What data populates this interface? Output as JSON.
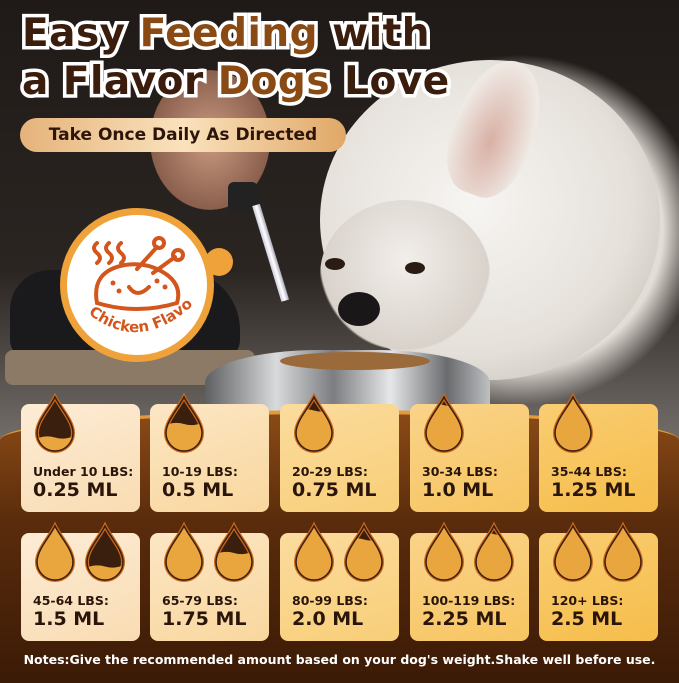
{
  "headline": {
    "line1": [
      "Easy ",
      "Feeding",
      " with"
    ],
    "line2": [
      "a Flavor ",
      "Dogs",
      " Love"
    ]
  },
  "subheadline": "Take Once Daily As Directed",
  "badge": {
    "label": "Chicken Flavor",
    "icon": "roast-chicken-icon"
  },
  "colors": {
    "dark_brown": "#3a1d0c",
    "accent_brown": "#8a4a14",
    "orange": "#f0a23a",
    "drop_fill": "#eaa63e",
    "drop_empty": "#3a1e0e"
  },
  "dosage": [
    {
      "weight": "Under 10 LBS:",
      "dose": "0.25 ML",
      "drops": [
        0.25
      ]
    },
    {
      "weight": "10-19 LBS:",
      "dose": "0.5 ML",
      "drops": [
        0.5
      ]
    },
    {
      "weight": "20-29 LBS:",
      "dose": "0.75 ML",
      "drops": [
        0.75
      ]
    },
    {
      "weight": "30-34 LBS:",
      "dose": "1.0 ML",
      "drops": [
        0.85
      ]
    },
    {
      "weight": "35-44 LBS:",
      "dose": "1.25 ML",
      "drops": [
        1
      ]
    },
    {
      "weight": "45-64 LBS:",
      "dose": "1.5 ML",
      "drops": [
        1,
        0.25
      ]
    },
    {
      "weight": "65-79 LBS:",
      "dose": "1.75 ML",
      "drops": [
        1,
        0.5
      ]
    },
    {
      "weight": "80-99 LBS:",
      "dose": "2.0 ML",
      "drops": [
        1,
        0.75
      ]
    },
    {
      "weight": "100-119 LBS:",
      "dose": "2.25 ML",
      "drops": [
        1,
        0.85
      ]
    },
    {
      "weight": "120+ LBS:",
      "dose": "2.5 ML",
      "drops": [
        1,
        1
      ]
    }
  ],
  "notes": "Notes:Give the recommended amount based on your dog's weight.Shake well before use."
}
